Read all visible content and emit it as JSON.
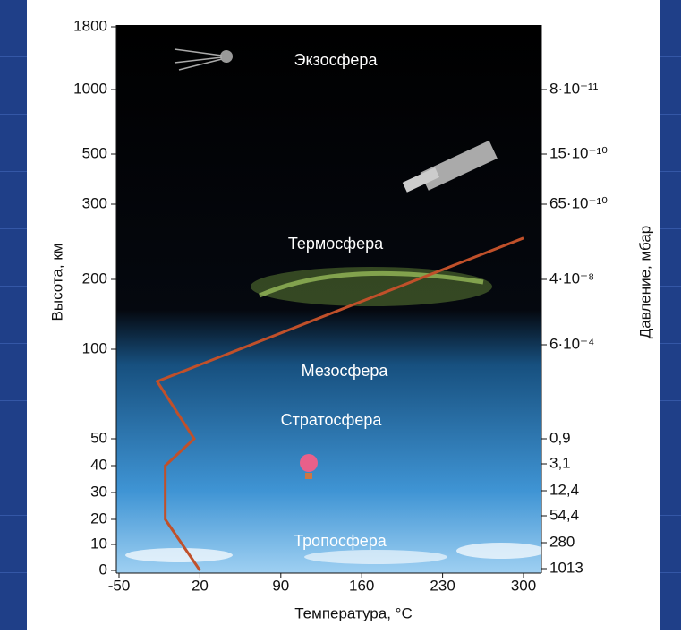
{
  "chart_data": {
    "type": "line",
    "annotations": [
      "Экзосфера",
      "Термосфера",
      "Мезосфера",
      "Стратосфера",
      "Тропосфера"
    ],
    "ylabel": "Высота, км",
    "y2label": "Давление, мбар",
    "xlabel": "Температура, °C",
    "x": [
      20,
      -10,
      -10,
      15,
      -17,
      300
    ],
    "values": [
      0,
      20,
      40,
      50,
      82,
      255
    ],
    "color": "#c0502a",
    "xlim": [
      -50,
      300
    ],
    "xticks": [
      -50,
      20,
      90,
      160,
      230,
      300
    ],
    "ylim": [
      0,
      1800
    ],
    "yticks": [
      0,
      10,
      20,
      30,
      40,
      50,
      100,
      200,
      300,
      500,
      1000,
      1800
    ],
    "y2ticks": [
      {
        "value": 8e-11,
        "label": "8·10⁻¹¹"
      },
      {
        "value": 1.5e-09,
        "label": "15·10⁻¹⁰"
      },
      {
        "value": 6.5e-09,
        "label": "65·10⁻¹⁰"
      },
      {
        "value": 4e-08,
        "label": "4·10⁻⁸"
      },
      {
        "value": 0.0006,
        "label": "6·10⁻⁴"
      },
      {
        "value": 0.9,
        "label": "0,9"
      },
      {
        "value": 3.1,
        "label": "3,1"
      },
      {
        "value": 12.4,
        "label": "12,4"
      },
      {
        "value": 54.4,
        "label": "54,4"
      },
      280,
      1013
    ]
  }
}
